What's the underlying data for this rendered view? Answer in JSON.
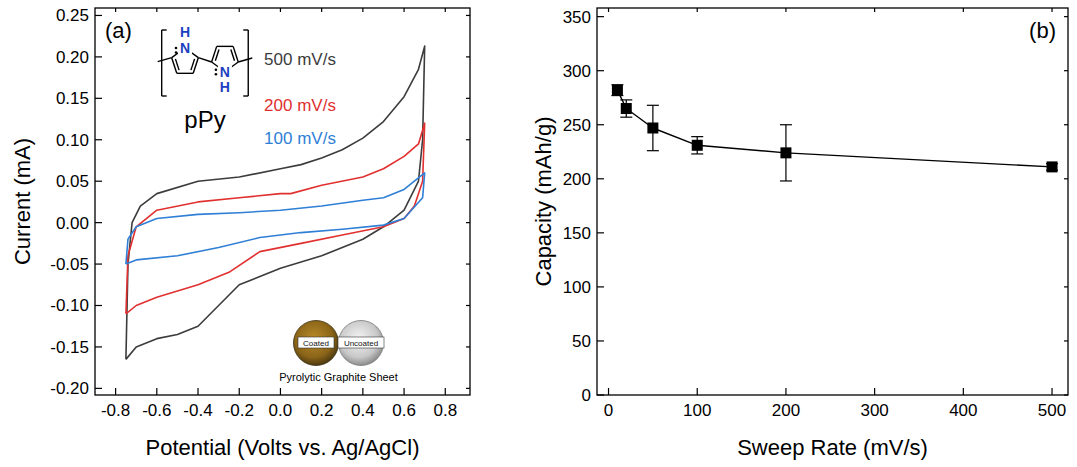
{
  "chart_data": [
    {
      "type": "line",
      "panel_label": "(a)",
      "x_label": "Potential (Volts vs. Ag/AgCl)",
      "y_label": "Current (mA)",
      "xlim": [
        -0.9,
        0.92
      ],
      "ylim": [
        -0.208,
        0.259
      ],
      "xticks": [
        -0.8,
        -0.6,
        -0.4,
        -0.2,
        {
          "value": 0,
          "label": "0.0"
        },
        0.2,
        0.4,
        0.6,
        0.8
      ],
      "yticks": [
        {
          "value": -0.2,
          "label": "-0.20"
        },
        {
          "value": -0.15,
          "label": "-0.15"
        },
        {
          "value": -0.1,
          "label": "-0.10"
        },
        {
          "value": -0.05,
          "label": "-0.05"
        },
        {
          "value": 0,
          "label": "0.00"
        },
        {
          "value": 0.05,
          "label": "0.05"
        },
        {
          "value": 0.1,
          "label": "0.10"
        },
        {
          "value": 0.15,
          "label": "0.15"
        },
        {
          "value": 0.2,
          "label": "0.20"
        },
        {
          "value": 0.25,
          "label": "0.25"
        }
      ],
      "series": [
        {
          "name": "500 mV/s",
          "color": "#3c3c3c",
          "x": [
            -0.75,
            -0.74,
            -0.72,
            -0.68,
            -0.6,
            -0.4,
            -0.2,
            0.0,
            0.1,
            0.2,
            0.3,
            0.4,
            0.5,
            0.6,
            0.67,
            0.7,
            0.69,
            0.67,
            0.6,
            0.5,
            0.4,
            0.2,
            0.0,
            -0.2,
            -0.3,
            -0.4,
            -0.5,
            -0.6,
            -0.7,
            -0.75
          ],
          "values": [
            -0.165,
            -0.05,
            0.0,
            0.02,
            0.035,
            0.05,
            0.055,
            0.065,
            0.07,
            0.078,
            0.088,
            0.102,
            0.122,
            0.152,
            0.185,
            0.213,
            0.1,
            0.05,
            0.015,
            -0.005,
            -0.02,
            -0.04,
            -0.055,
            -0.075,
            -0.1,
            -0.125,
            -0.135,
            -0.14,
            -0.15,
            -0.165
          ]
        },
        {
          "name": "200 mV/s",
          "color": "#e0302f",
          "x": [
            -0.75,
            -0.74,
            -0.7,
            -0.6,
            -0.4,
            -0.2,
            0.0,
            0.05,
            0.2,
            0.4,
            0.5,
            0.6,
            0.67,
            0.7,
            0.69,
            0.65,
            0.6,
            0.5,
            0.3,
            0.1,
            -0.1,
            -0.25,
            -0.4,
            -0.6,
            -0.7,
            -0.75
          ],
          "values": [
            -0.11,
            -0.04,
            -0.005,
            0.015,
            0.025,
            0.03,
            0.035,
            0.035,
            0.045,
            0.055,
            0.065,
            0.08,
            0.095,
            0.12,
            0.05,
            0.02,
            0.005,
            -0.005,
            -0.015,
            -0.025,
            -0.035,
            -0.06,
            -0.075,
            -0.09,
            -0.1,
            -0.11
          ]
        },
        {
          "name": "100 mV/s",
          "color": "#2f7fd6",
          "x": [
            -0.75,
            -0.74,
            -0.7,
            -0.6,
            -0.4,
            -0.2,
            0.0,
            0.2,
            0.4,
            0.5,
            0.6,
            0.7,
            0.69,
            0.6,
            0.5,
            0.3,
            0.1,
            -0.1,
            -0.3,
            -0.5,
            -0.7,
            -0.75
          ],
          "values": [
            -0.05,
            -0.02,
            -0.005,
            0.005,
            0.01,
            0.012,
            0.015,
            0.02,
            0.027,
            0.03,
            0.04,
            0.06,
            0.03,
            0.005,
            -0.003,
            -0.008,
            -0.012,
            -0.018,
            -0.03,
            -0.04,
            -0.045,
            -0.05
          ]
        }
      ],
      "annotations": [
        "pPy",
        "Coated",
        "Uncoated",
        "Pyrolytic Graphite Sheet"
      ],
      "structure_atoms": [
        "H",
        "N",
        "N",
        "H"
      ]
    },
    {
      "type": "line",
      "panel_label": "(b)",
      "x_label": "Sweep Rate (mV/s)",
      "y_label": "Capacity (mAh/g)",
      "xlim": [
        -13,
        518
      ],
      "ylim": [
        0,
        358
      ],
      "xticks": [
        0,
        100,
        200,
        300,
        400,
        500
      ],
      "yticks": [
        0,
        50,
        100,
        150,
        200,
        250,
        300,
        350
      ],
      "x": [
        10,
        20,
        50,
        100,
        200,
        500
      ],
      "series": [
        {
          "color": "#000000",
          "marker": "square",
          "values": [
            282,
            265,
            247,
            231,
            224,
            211
          ],
          "errors": [
            5,
            8,
            21,
            8,
            26,
            3
          ]
        }
      ]
    }
  ]
}
